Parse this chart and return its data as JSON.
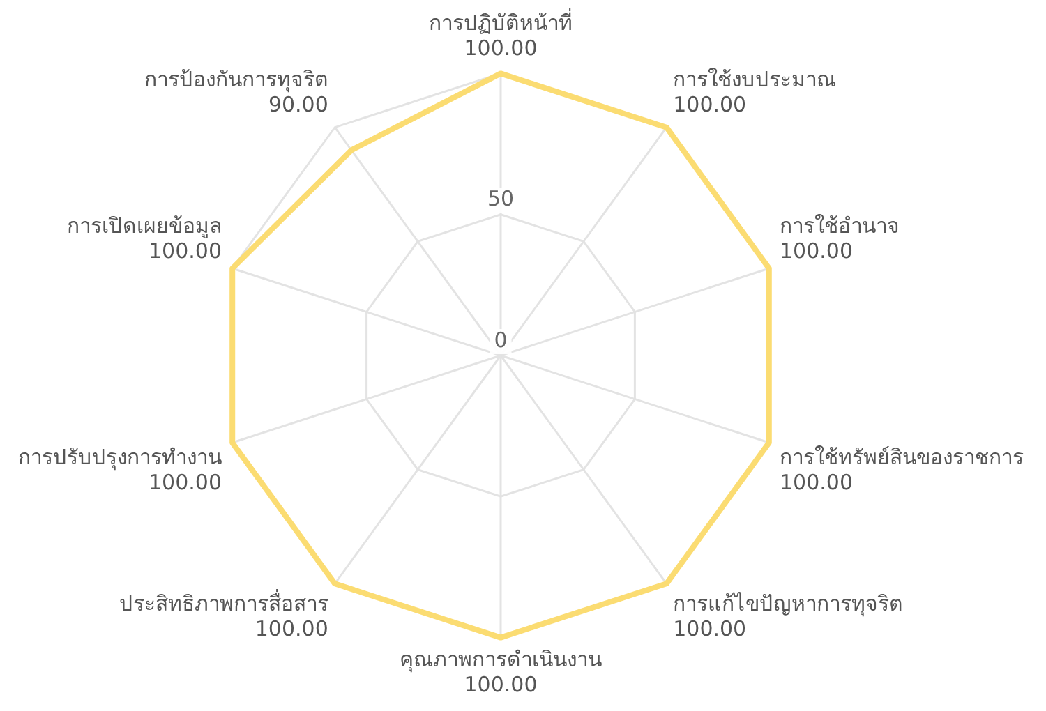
{
  "chart_data": {
    "type": "radar",
    "categories": [
      "การปฏิบัติหน้าที่",
      "การใช้งบประมาณ",
      "การใช้อำนาจ",
      "การใช้ทรัพย์สินของราชการ",
      "การแก้ไขปัญหาการทุจริต",
      "คุณภาพการดำเนินงาน",
      "ประสิทธิภาพการสื่อสาร",
      "การปรับปรุงการทำงาน",
      "การเปิดเผยข้อมูล",
      "การป้องกันการทุจริต"
    ],
    "series": [
      {
        "color": "#fbdc72",
        "values": [
          100,
          100,
          100,
          100,
          100,
          100,
          100,
          100,
          100,
          90
        ],
        "value_labels": [
          "100.00",
          "100.00",
          "100.00",
          "100.00",
          "100.00",
          "100.00",
          "100.00",
          "100.00",
          "100.00",
          "90.00"
        ]
      }
    ],
    "ylim": [
      0,
      100
    ],
    "yticks": [
      0,
      50
    ],
    "grid": true,
    "marker": "none",
    "legend": false
  }
}
